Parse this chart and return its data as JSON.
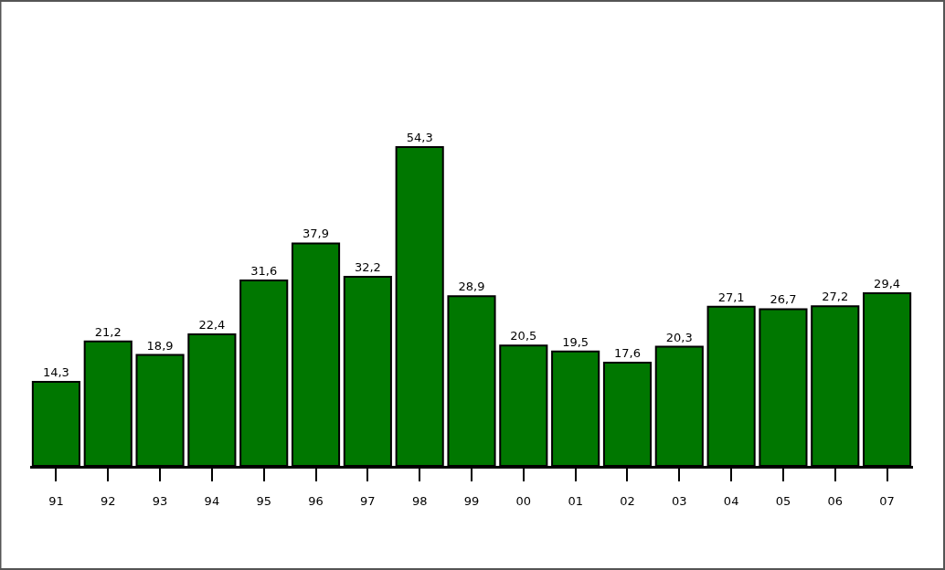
{
  "chart_data": {
    "type": "bar",
    "categories": [
      "91",
      "92",
      "93",
      "94",
      "95",
      "96",
      "97",
      "98",
      "99",
      "00",
      "01",
      "02",
      "03",
      "04",
      "05",
      "06",
      "07"
    ],
    "values": [
      14.3,
      21.2,
      18.9,
      22.4,
      31.6,
      37.9,
      32.2,
      54.3,
      28.9,
      20.5,
      19.5,
      17.6,
      20.3,
      27.1,
      26.7,
      27.2,
      29.4
    ],
    "value_labels": [
      "14,3",
      "21,2",
      "18,9",
      "22,4",
      "31,6",
      "37,9",
      "32,2",
      "54,3",
      "28,9",
      "20,5",
      "19,5",
      "17,6",
      "20,3",
      "27,1",
      "26,7",
      "27,2",
      "29,4"
    ],
    "color": "#007700",
    "tick_labels": "x"
  }
}
